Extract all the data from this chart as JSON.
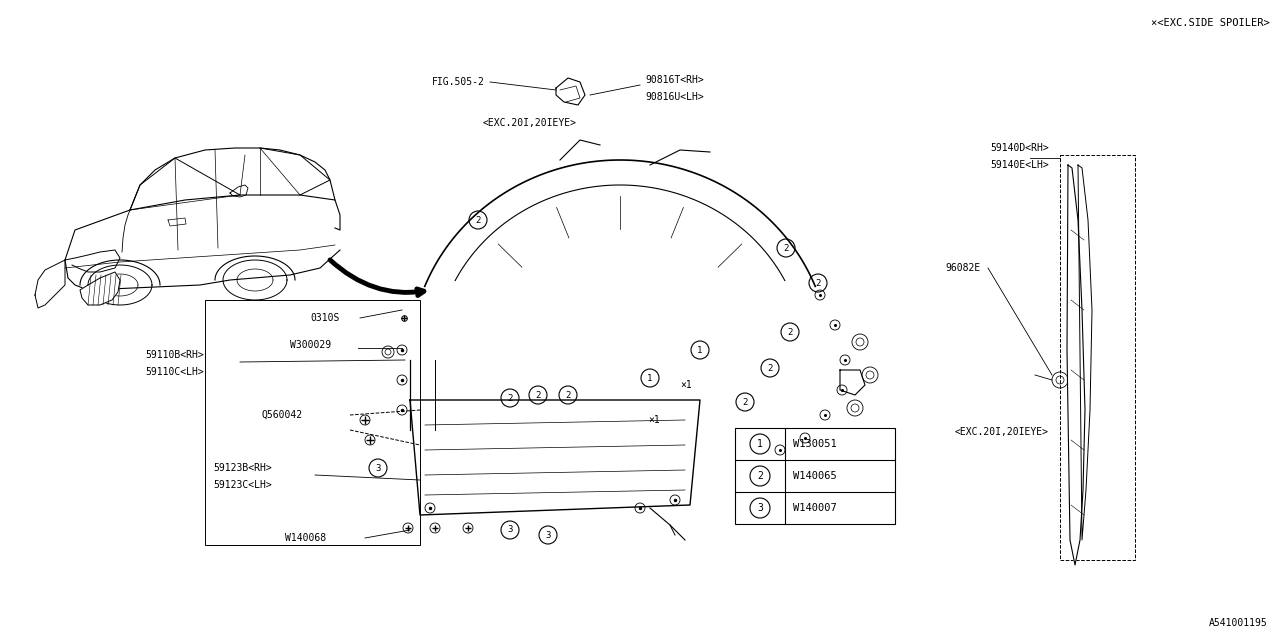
{
  "bg_color": "#ffffff",
  "lc": "#000000",
  "fig_w": 12.8,
  "fig_h": 6.4,
  "dpi": 100,
  "title_note": "×<EXC.SIDE SPOILER>",
  "diagram_id": "A541001195",
  "exc_note1": "<EXC.20I,20IEYE>",
  "exc_note2": "<EXC.20I,20IEYE>",
  "fig505": "FIG.505-2",
  "p90816T": "90816T<RH>",
  "p90816U": "90816U<LH>",
  "p59140D": "59140D<RH>",
  "p59140E": "59140E<LH>",
  "p96082E": "96082E",
  "p59110B": "59110B<RH>",
  "p59110C": "59110C<LH>",
  "p0310S": "0310S",
  "pW300029": "W300029",
  "pQ560042": "Q560042",
  "p59123B": "59123B<RH>",
  "p59123C": "59123C<LH>",
  "pW140068": "W140068",
  "leg": [
    [
      "1",
      "W130051"
    ],
    [
      "2",
      "W140065"
    ],
    [
      "3",
      "W140007"
    ]
  ],
  "font_size": 7.0
}
